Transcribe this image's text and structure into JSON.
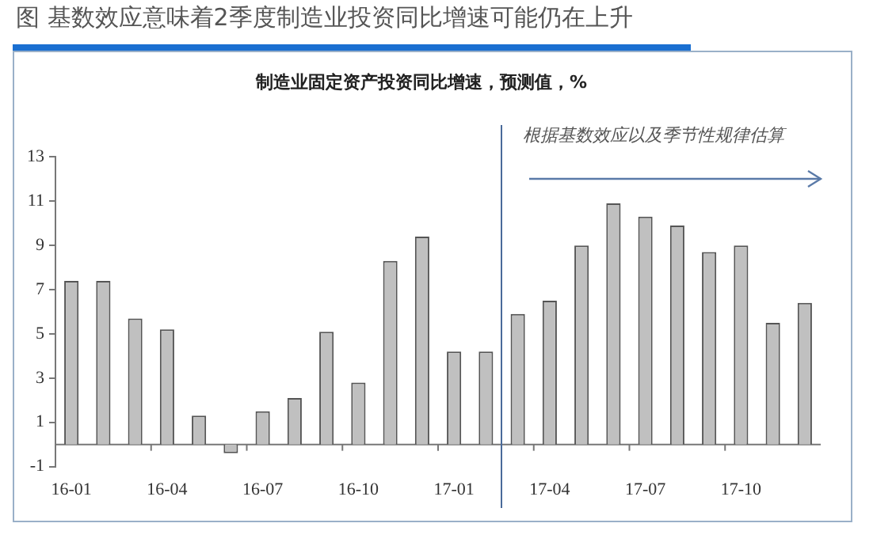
{
  "chart_data": {
    "type": "bar",
    "title": "图 基数效应意味着2季度制造业投资同比增速可能仍在上升",
    "subtitle": "制造业固定资产投资同比增速，预测值，%",
    "categories": [
      "16-01",
      null,
      null,
      "16-04",
      null,
      null,
      "16-07",
      null,
      null,
      "16-10",
      null,
      null,
      "17-01",
      null,
      null,
      "17-04",
      null,
      null,
      "17-07",
      null,
      null,
      "17-10",
      null,
      null
    ],
    "values": [
      7.4,
      7.4,
      5.7,
      5.2,
      1.3,
      -0.4,
      1.5,
      2.1,
      5.1,
      2.8,
      8.3,
      9.4,
      4.2,
      4.2,
      5.9,
      6.5,
      9.0,
      10.9,
      10.3,
      9.9,
      8.7,
      9.0,
      5.5,
      6.4
    ],
    "color": "#c0c0c0",
    "ylim": [
      -1,
      13
    ],
    "yticks": [
      -1,
      1,
      3,
      5,
      7,
      9,
      11,
      13
    ],
    "annotations": [
      "根据基数效应以及季节性规律估算"
    ],
    "grid": false,
    "legend": false
  }
}
